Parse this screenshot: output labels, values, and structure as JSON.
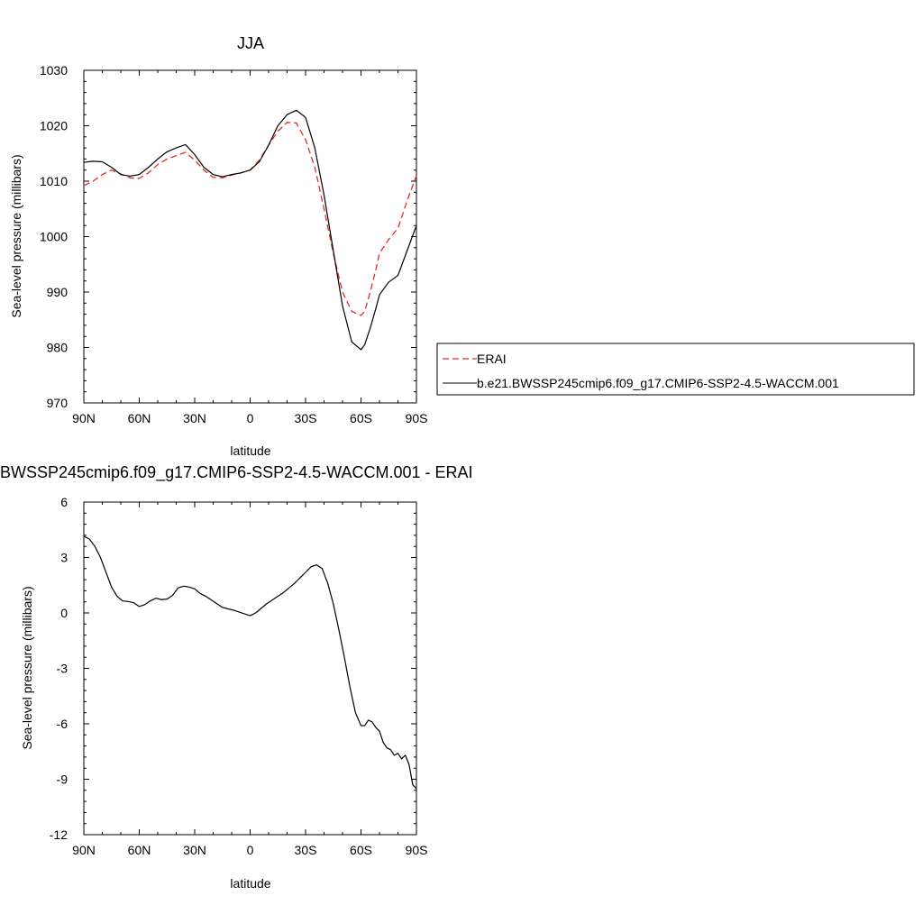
{
  "chart_data": [
    {
      "type": "line",
      "title": "JJA",
      "xlabel": "latitude",
      "ylabel": "Sea-level pressure (millibars)",
      "xticks": [
        "90N",
        "60N",
        "30N",
        "0",
        "30S",
        "60S",
        "90S"
      ],
      "xtick_values": [
        90,
        60,
        30,
        0,
        -30,
        -60,
        -90
      ],
      "xlim": [
        90,
        -90
      ],
      "ylim": [
        970,
        1030
      ],
      "yticks": [
        970,
        980,
        990,
        1000,
        1010,
        1020,
        1030
      ],
      "legend_placement": "right",
      "series": [
        {
          "name": "ERAI",
          "style": "dashed",
          "color": "#e8292c",
          "x": [
            90,
            85,
            80,
            75,
            70,
            65,
            60,
            55,
            50,
            45,
            40,
            35,
            30,
            25,
            20,
            15,
            10,
            5,
            0,
            -5,
            -10,
            -15,
            -20,
            -25,
            -30,
            -35,
            -40,
            -45,
            -50,
            -55,
            -60,
            -62,
            -65,
            -68,
            -70,
            -75,
            -80,
            -85,
            -90
          ],
          "y": [
            1009.2,
            1010.0,
            1011.2,
            1012.0,
            1011.3,
            1010.6,
            1010.5,
            1011.5,
            1013.0,
            1014.0,
            1014.6,
            1015.2,
            1013.8,
            1012.0,
            1010.7,
            1010.6,
            1011.1,
            1011.5,
            1012.0,
            1013.8,
            1016.5,
            1019.0,
            1020.6,
            1020.5,
            1017.5,
            1012.5,
            1005.0,
            997.0,
            990.0,
            986.5,
            985.8,
            986.5,
            990.0,
            994.0,
            997.0,
            999.5,
            1001.5,
            1006.5,
            1011.0
          ]
        },
        {
          "name": "b.e21.BWSSP245cmip6.f09_g17.CMIP6-SSP2-4.5-WACCM.001",
          "style": "solid",
          "color": "#000000",
          "x": [
            90,
            85,
            80,
            75,
            70,
            65,
            60,
            55,
            50,
            45,
            40,
            35,
            30,
            25,
            20,
            15,
            10,
            5,
            0,
            -5,
            -10,
            -15,
            -20,
            -25,
            -30,
            -35,
            -40,
            -45,
            -50,
            -55,
            -60,
            -62,
            -65,
            -68,
            -70,
            -75,
            -80,
            -85,
            -90
          ],
          "y": [
            1013.4,
            1013.6,
            1013.5,
            1012.5,
            1011.2,
            1010.9,
            1011.2,
            1012.5,
            1014.0,
            1015.3,
            1016.0,
            1016.6,
            1014.8,
            1012.5,
            1011.2,
            1010.8,
            1011.2,
            1011.5,
            1012.0,
            1013.5,
            1016.5,
            1020.0,
            1022.0,
            1022.8,
            1021.5,
            1016.0,
            1007.5,
            997.5,
            987.5,
            981.0,
            979.6,
            980.5,
            983.5,
            987.0,
            989.5,
            991.8,
            993.0,
            997.5,
            1002.0
          ]
        }
      ]
    },
    {
      "type": "line",
      "title": "BWSSP245cmip6.f09_g17.CMIP6-SSP2-4.5-WACCM.001 - ERAI",
      "xlabel": "latitude",
      "ylabel": "Sea-level pressure (millibars)",
      "xticks": [
        "90N",
        "60N",
        "30N",
        "0",
        "30S",
        "60S",
        "90S"
      ],
      "xtick_values": [
        90,
        60,
        30,
        0,
        -30,
        -60,
        -90
      ],
      "xlim": [
        90,
        -90
      ],
      "ylim": [
        -12,
        6
      ],
      "yticks": [
        -12,
        -9,
        -6,
        -3,
        0,
        3,
        6
      ],
      "series": [
        {
          "style": "solid",
          "color": "#000000",
          "x": [
            90,
            87,
            84,
            81,
            78,
            75,
            72,
            69,
            66,
            63,
            60,
            57,
            54,
            51,
            48,
            45,
            42,
            39,
            36,
            33,
            30,
            27,
            24,
            21,
            18,
            15,
            12,
            9,
            6,
            3,
            0,
            -3,
            -6,
            -9,
            -12,
            -15,
            -18,
            -21,
            -24,
            -27,
            -30,
            -33,
            -36,
            -39,
            -42,
            -45,
            -48,
            -51,
            -54,
            -57,
            -60,
            -62,
            -64,
            -66,
            -68,
            -70,
            -72,
            -74,
            -76,
            -78,
            -80,
            -82,
            -84,
            -86,
            -88,
            -90
          ],
          "y": [
            4.15,
            4.0,
            3.6,
            3.0,
            2.2,
            1.4,
            0.9,
            0.65,
            0.62,
            0.55,
            0.35,
            0.45,
            0.65,
            0.8,
            0.72,
            0.75,
            0.95,
            1.35,
            1.45,
            1.4,
            1.3,
            1.05,
            0.9,
            0.7,
            0.5,
            0.3,
            0.22,
            0.15,
            0.05,
            -0.05,
            -0.15,
            0.0,
            0.25,
            0.5,
            0.7,
            0.9,
            1.1,
            1.35,
            1.6,
            1.9,
            2.2,
            2.5,
            2.6,
            2.4,
            1.6,
            0.5,
            -0.9,
            -2.4,
            -4.0,
            -5.4,
            -6.1,
            -6.1,
            -5.8,
            -5.9,
            -6.2,
            -6.4,
            -7.0,
            -7.3,
            -7.4,
            -7.7,
            -7.6,
            -7.9,
            -7.7,
            -8.2,
            -9.3,
            -9.5
          ]
        }
      ]
    }
  ]
}
